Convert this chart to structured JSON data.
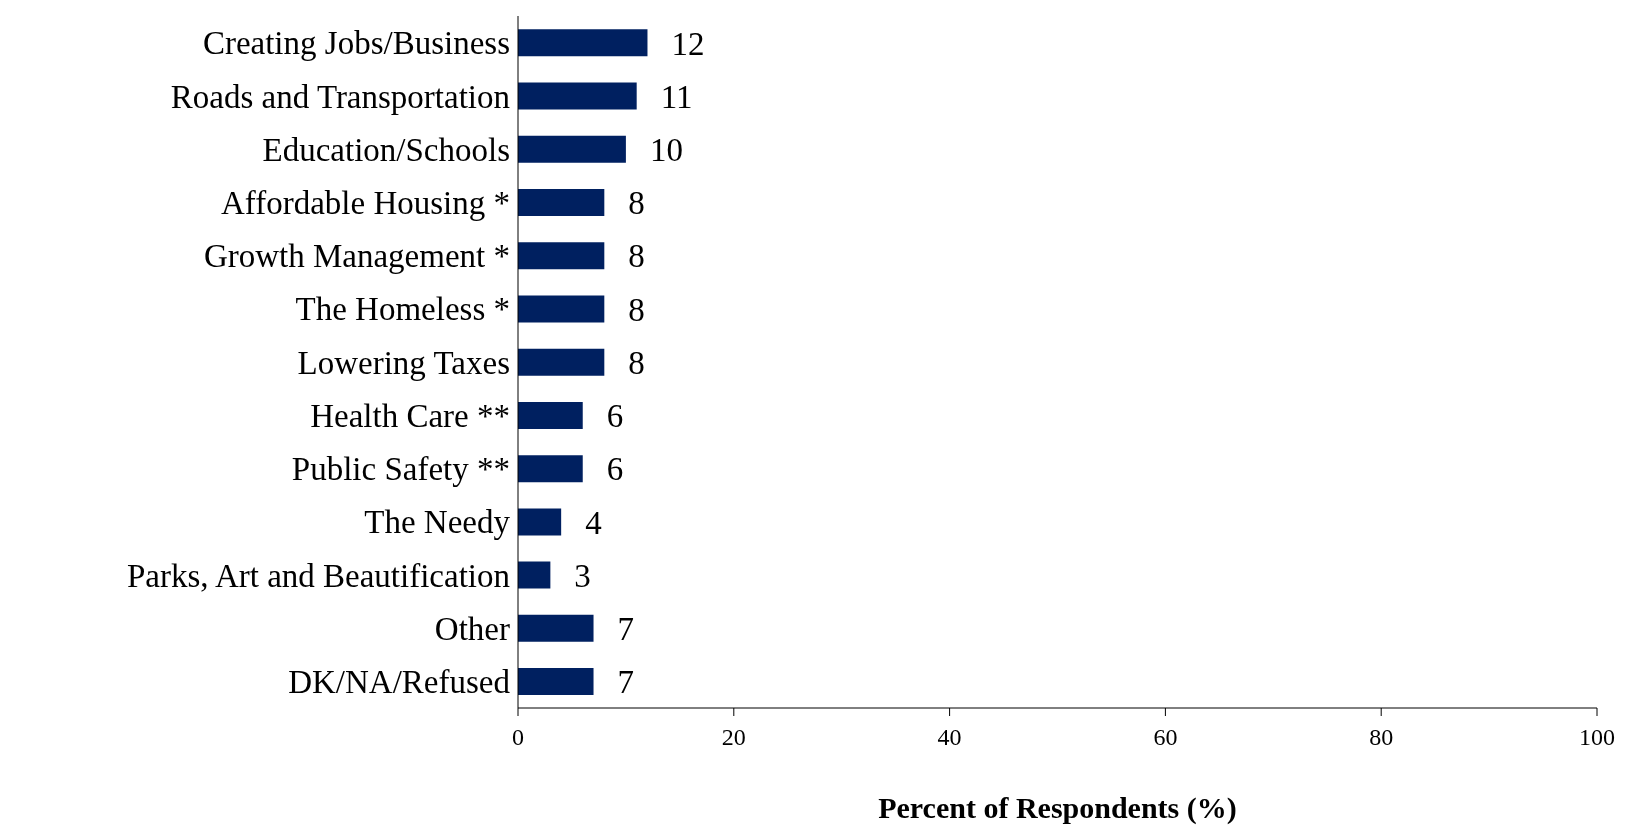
{
  "chart_data": {
    "type": "bar",
    "orientation": "horizontal",
    "xlabel": "Percent of Respondents (%)",
    "categories": [
      "Creating Jobs/Business",
      "Roads and Transportation",
      "Education/Schools",
      "Affordable Housing *",
      "Growth Management *",
      "The Homeless *",
      "Lowering Taxes",
      "Health Care **",
      "Public Safety **",
      "The Needy",
      "Parks, Art and Beautification",
      "Other",
      "DK/NA/Refused"
    ],
    "values": [
      12,
      11,
      10,
      8,
      8,
      8,
      8,
      6,
      6,
      4,
      3,
      7,
      7
    ],
    "color": "#002060",
    "xlim": [
      0,
      100
    ],
    "xticks": [
      0,
      20,
      40,
      60,
      80,
      100
    ],
    "data_labels": true,
    "grid": false
  }
}
